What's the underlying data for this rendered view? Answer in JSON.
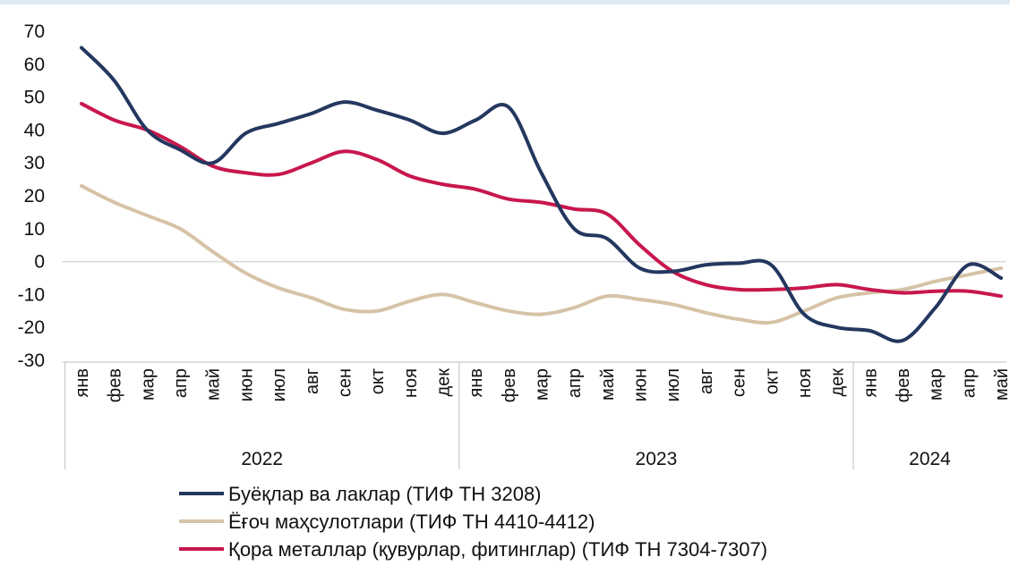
{
  "chart_data": {
    "type": "line",
    "categories": [
      "янв",
      "фев",
      "мар",
      "апр",
      "май",
      "июн",
      "июл",
      "авг",
      "сен",
      "окт",
      "ноя",
      "дек",
      "янв",
      "фев",
      "мар",
      "апр",
      "май",
      "июн",
      "июл",
      "авг",
      "сен",
      "окт",
      "ноя",
      "дек",
      "янв",
      "фев",
      "мар",
      "апр",
      "май"
    ],
    "category_groups": [
      "2022",
      "2022",
      "2022",
      "2022",
      "2022",
      "2022",
      "2022",
      "2022",
      "2022",
      "2022",
      "2022",
      "2022",
      "2023",
      "2023",
      "2023",
      "2023",
      "2023",
      "2023",
      "2023",
      "2023",
      "2023",
      "2023",
      "2023",
      "2023",
      "2024",
      "2024",
      "2024",
      "2024",
      "2024"
    ],
    "series": [
      {
        "name": "Буёқлар ва лаклар (ТИФ ТН 3208)",
        "color": "#24375f",
        "values": [
          65,
          55,
          40,
          34,
          30,
          39,
          42,
          45,
          48.5,
          46,
          43,
          39,
          43,
          47,
          27,
          10,
          7,
          -2,
          -3,
          -1,
          -0.5,
          -1,
          -16,
          -20,
          -21,
          -24,
          -14,
          -1,
          -5
        ]
      },
      {
        "name": "Ёғоч маҳсулотлари (ТИФ ТН 4410-4412)",
        "color": "#d6c3a7",
        "values": [
          23,
          18,
          14,
          10,
          3,
          -3.5,
          -8,
          -11,
          -14.5,
          -15,
          -12,
          -10,
          -12.5,
          -15,
          -16,
          -14,
          -10.5,
          -11.5,
          -13,
          -15.5,
          -17.5,
          -18.5,
          -15,
          -11,
          -9.5,
          -8.5,
          -6,
          -4,
          -2
        ]
      },
      {
        "name": "Қора металлар (қувурлар, фитинглар) (ТИФ ТН 7304-7307)",
        "color": "#c8174d",
        "values": [
          48,
          43,
          40,
          35,
          29,
          27,
          26.5,
          30,
          33.5,
          31,
          26,
          23.5,
          22,
          19,
          18,
          16,
          14.5,
          5,
          -3,
          -7,
          -8.5,
          -8.5,
          -8,
          -7,
          -8.5,
          -9.5,
          -9,
          -9,
          -10.5
        ]
      }
    ],
    "ylim": [
      -30,
      70
    ],
    "yticks": [
      70,
      60,
      50,
      40,
      30,
      20,
      10,
      0,
      -10,
      -20,
      -30
    ]
  }
}
